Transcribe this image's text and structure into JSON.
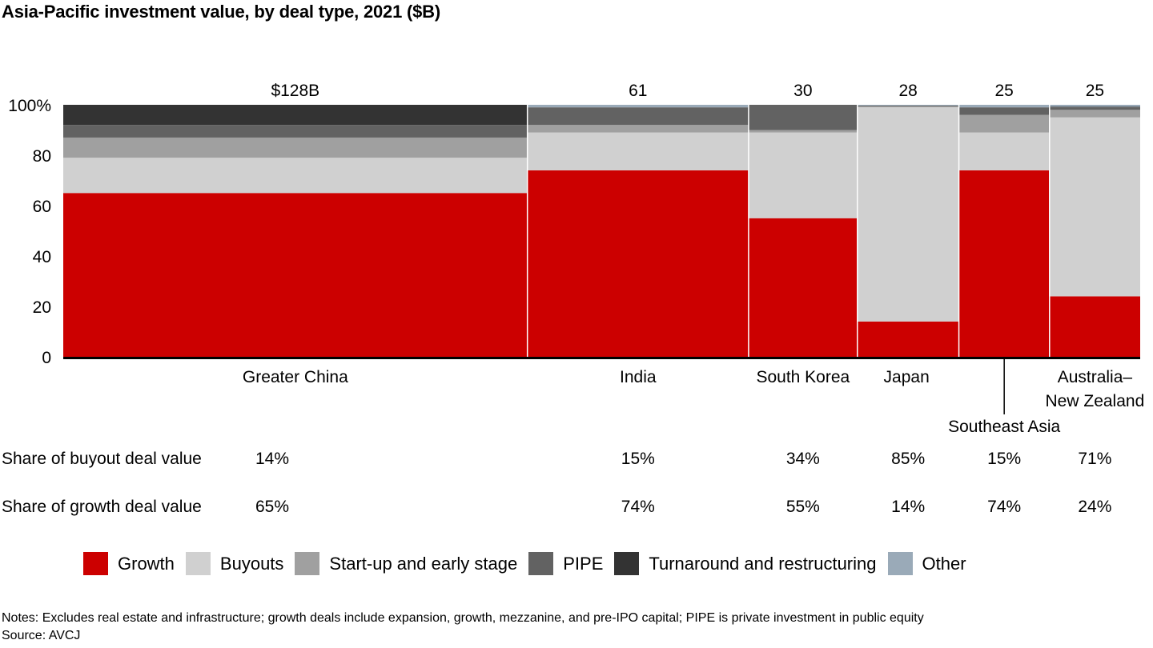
{
  "chart_data": {
    "type": "bar",
    "subtype": "marimekko-100pct-stacked",
    "title": "Asia-Pacific investment value, by deal type, 2021 ($B)",
    "xlabel": "",
    "ylabel": "",
    "ylim": [
      0,
      100
    ],
    "yticks": [
      "0",
      "20",
      "40",
      "60",
      "80",
      "100%"
    ],
    "ytick_values": [
      0,
      20,
      40,
      60,
      80,
      100
    ],
    "grid": false,
    "legend_position": "bottom",
    "categories": [
      "Greater China",
      "India",
      "South Korea",
      "Japan",
      "Southeast Asia",
      "Australia–New Zealand"
    ],
    "category_label_lines": [
      [
        "Greater China"
      ],
      [
        "India"
      ],
      [
        "South Korea"
      ],
      [
        "Japan"
      ],
      [
        "Southeast Asia"
      ],
      [
        "Australia–",
        "New Zealand"
      ]
    ],
    "totals": [
      128,
      61,
      30,
      28,
      25,
      25
    ],
    "total_labels": [
      "$128B",
      "61",
      "30",
      "28",
      "25",
      "25"
    ],
    "series": [
      {
        "name": "Growth",
        "color": "#cc0000",
        "values": [
          65,
          74,
          55,
          14,
          74,
          24
        ]
      },
      {
        "name": "Buyouts",
        "color": "#d0d0d0",
        "values": [
          14,
          15,
          34,
          85,
          15,
          71
        ]
      },
      {
        "name": "Start-up and early stage",
        "color": "#a0a0a0",
        "values": [
          8,
          3,
          1,
          0.4,
          7,
          3
        ]
      },
      {
        "name": "PIPE",
        "color": "#626262",
        "values": [
          5,
          7,
          10,
          0.3,
          3,
          1
        ]
      },
      {
        "name": "Turnaround and restructuring",
        "color": "#333333",
        "values": [
          8,
          0,
          0,
          0,
          0,
          0.2
        ]
      },
      {
        "name": "Other",
        "color": "#9aaab8",
        "values": [
          0,
          1,
          0,
          0.3,
          1,
          0.8
        ]
      }
    ],
    "table_rows": [
      {
        "label": "Share of buyout deal value",
        "values": [
          "14%",
          "15%",
          "34%",
          "85%",
          "15%",
          "71%"
        ]
      },
      {
        "label": "Share of growth deal value",
        "values": [
          "65%",
          "74%",
          "55%",
          "14%",
          "74%",
          "24%"
        ]
      }
    ]
  },
  "notes": "Notes: Excludes real estate and infrastructure; growth deals include expansion, growth, mezzanine, and pre-IPO capital; PIPE is private investment in public equity",
  "source": "Source: AVCJ"
}
